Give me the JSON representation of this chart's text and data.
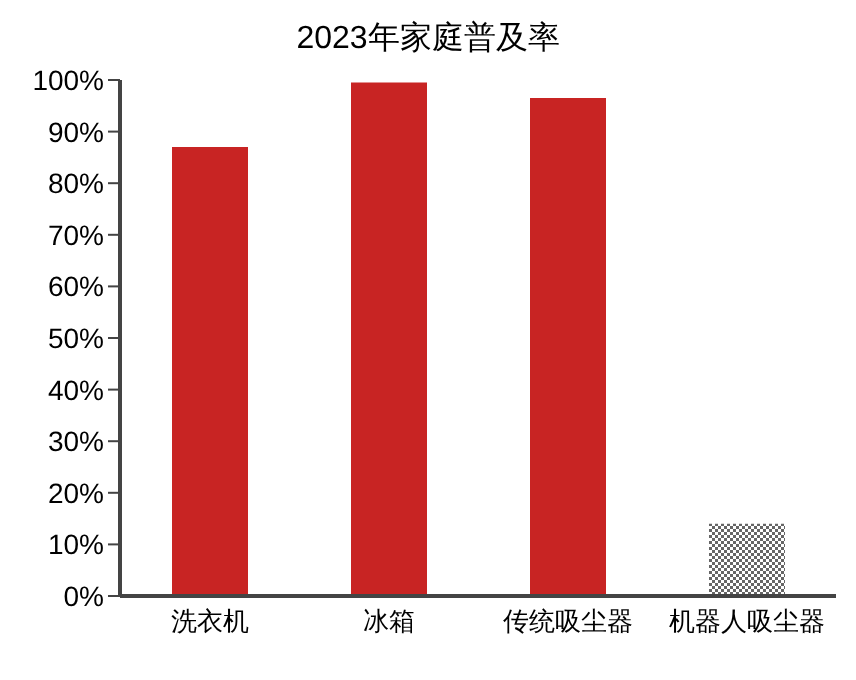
{
  "chart_data": {
    "type": "bar",
    "title": "2023年家庭普及率",
    "categories": [
      "洗衣机",
      "冰箱",
      "传统吸尘器",
      "机器人吸尘器"
    ],
    "values": [
      87,
      99.5,
      96.5,
      14
    ],
    "colors": [
      "#c82423",
      "#c82423",
      "#c82423",
      "#666666"
    ],
    "ylim": [
      0,
      100
    ],
    "yticks": [
      {
        "value": 0,
        "label": "0%"
      },
      {
        "value": 10,
        "label": "10%"
      },
      {
        "value": 20,
        "label": "20%"
      },
      {
        "value": 30,
        "label": "30%"
      },
      {
        "value": 40,
        "label": "40%"
      },
      {
        "value": 50,
        "label": "50%"
      },
      {
        "value": 60,
        "label": "60%"
      },
      {
        "value": 70,
        "label": "70%"
      },
      {
        "value": 80,
        "label": "80%"
      },
      {
        "value": 90,
        "label": "90%"
      },
      {
        "value": 100,
        "label": "100%"
      }
    ],
    "grid": false,
    "legend": false
  }
}
